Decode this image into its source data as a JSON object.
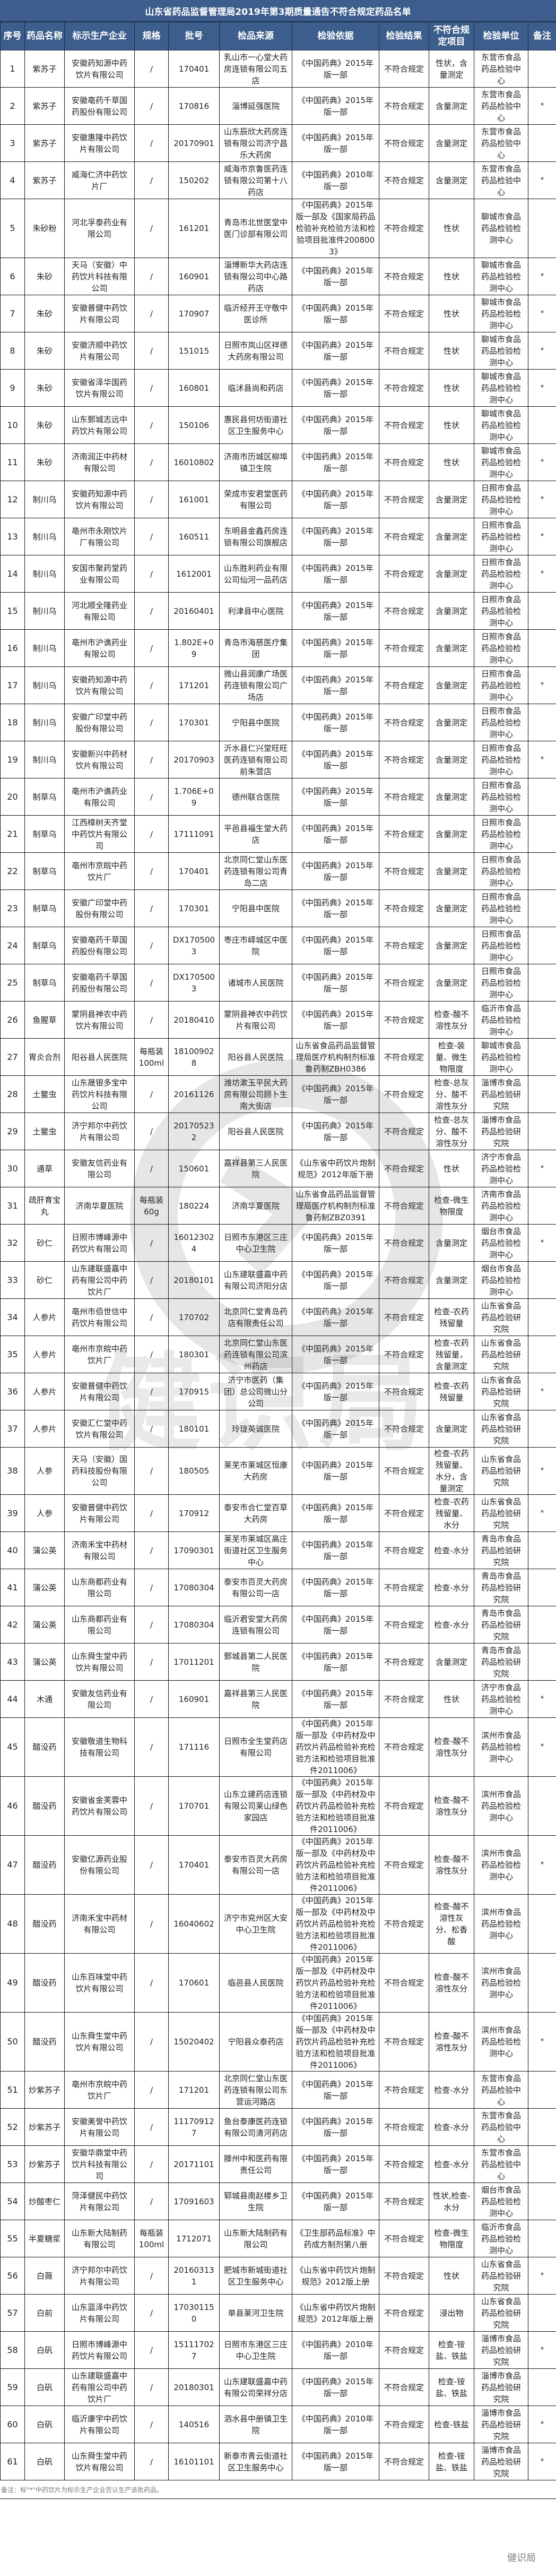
{
  "title": "山东省药品监督管理局2019年第3期质量通告不符合规定药品名单",
  "columns": [
    "序号",
    "药品名称",
    "标示生产企业",
    "规格",
    "批号",
    "检品来源",
    "检验依据",
    "检验结果",
    "不符合规定项目",
    "检验单位",
    "备注"
  ],
  "header_color": "#3d5e8c",
  "rows": [
    [
      "1",
      "紫苏子",
      "安徽药知源中药饮片有限公司",
      "/",
      "170401",
      "乳山市一心堂大药房连锁有限公司五店",
      "《中国药典》2015年版一部",
      "不符合规定",
      "性状，含量测定",
      "东营市食品药品检验中心",
      ""
    ],
    [
      "2",
      "紫苏子",
      "安徽亳药千草国药股份有限公司",
      "/",
      "170816",
      "淄博延强医院",
      "《中国药典》2015年版一部",
      "不符合规定",
      "含量测定",
      "东营市食品药品检验中心",
      "*"
    ],
    [
      "3",
      "紫苏子",
      "安徽惠隆中药饮片有限公司",
      "/",
      "20170901",
      "山东辰欣大药房连锁有限公司济宁昌乐大药房",
      "《中国药典》2015年版一部",
      "不符合规定",
      "含量测定",
      "东营市食品药品检验中心",
      ""
    ],
    [
      "4",
      "紫苏子",
      "威海仁济中药饮片厂",
      "/",
      "150202",
      "威海市京鲁医药连锁有限公司第十八药店",
      "《中国药典》2010年版一部",
      "不符合规定",
      "含量测定",
      "东营市食品药品检验中心",
      "*"
    ],
    [
      "5",
      "朱砂粉",
      "河北孚泰药业有限公司",
      "/",
      "161201",
      "青岛市北世医堂中医门诊部有限公司",
      "《中国药典》2015年版一部及《国家局药品检验补充检验方法和检验项目批准件2008003》",
      "不符合规定",
      "性状",
      "聊城市食品药品检验检测中心",
      ""
    ],
    [
      "6",
      "朱砂",
      "天马（安徽）中药饮片科技有限公司",
      "/",
      "160901",
      "淄博新华大药店连锁有限公司中心路药店",
      "《中国药典》2015年版一部",
      "不符合规定",
      "性状",
      "聊城市食品药品检验检测中心",
      "*"
    ],
    [
      "7",
      "朱砂",
      "安徽普健中药饮片有限公司",
      "/",
      "170907",
      "临沂经开王守敬中医诊所",
      "《中国药典》2015年版一部",
      "不符合规定",
      "性状",
      "聊城市食品药品检验检测中心",
      "*"
    ],
    [
      "8",
      "朱砂",
      "安徽济顺中药饮片有限公司",
      "/",
      "151015",
      "日照市岚山区祥德大药房有限公司",
      "《中国药典》2015年版一部",
      "不符合规定",
      "性状",
      "聊城市食品药品检验检测中心",
      "*"
    ],
    [
      "9",
      "朱砂",
      "安徽省泽华国药饮片有限公司",
      "/",
      "160801",
      "临沭县尚和药店",
      "《中国药典》2015年版一部",
      "不符合规定",
      "性状",
      "聊城市食品药品检验检测中心",
      "*"
    ],
    [
      "10",
      "朱砂",
      "山东鄄城志远中药饮片有限公司",
      "/",
      "150106",
      "惠民县何坊街道社区卫生服务中心",
      "《中国药典》2015年版一部",
      "不符合规定",
      "性状",
      "聊城市食品药品检验检测中心",
      ""
    ],
    [
      "11",
      "朱砂",
      "济南润正中药材有限公司",
      "/",
      "16010802",
      "济南市历城区柳埠镇卫生院",
      "《中国药典》2015年版一部",
      "不符合规定",
      "性状",
      "聊城市食品药品检验检测中心",
      "*"
    ],
    [
      "12",
      "制川乌",
      "安徽药知源中药饮片有限公司",
      "/",
      "161001",
      "荣成市安君堂医药有限公司",
      "《中国药典》2015年版一部",
      "不符合规定",
      "含量测定",
      "日照市食品药品检验检测中心",
      "*"
    ],
    [
      "13",
      "制川乌",
      "亳州市永刚饮片厂有限公司",
      "/",
      "160511",
      "东明县金鑫药房连锁有限公司旗舰店",
      "《中国药典》2015年版一部",
      "不符合规定",
      "含量测定",
      "日照市食品药品检验检测中心",
      "*"
    ],
    [
      "14",
      "制川乌",
      "安国市聚药堂药业有限公司",
      "/",
      "1612001",
      "山东胜利药业有限公司仙河一品药店",
      "《中国药典》2015年版一部",
      "不符合规定",
      "含量测定",
      "日照市食品药品检验检测中心",
      "*"
    ],
    [
      "15",
      "制川乌",
      "河北顺全隆药业有限公司",
      "/",
      "20160401",
      "利津县中心医院",
      "《中国药典》2015年版一部",
      "不符合规定",
      "含量测定",
      "日照市食品药品检验检测中心",
      ""
    ],
    [
      "16",
      "制川乌",
      "亳州市沪谯药业有限公司",
      "/",
      "1.802E+09",
      "青岛市海慈医疗集团",
      "《中国药典》2015年版一部",
      "不符合规定",
      "含量测定",
      "日照市食品药品检验检测中心",
      ""
    ],
    [
      "17",
      "制川乌",
      "安徽药知源中药饮片有限公司",
      "/",
      "171201",
      "微山县润康广场医药连锁有限公司广场店",
      "《中国药典》2015年版一部",
      "不符合规定",
      "含量测定",
      "日照市食品药品检验检测中心",
      "*"
    ],
    [
      "18",
      "制川乌",
      "安徽广印堂中药股份有限公司",
      "/",
      "170301",
      "宁阳县中医院",
      "《中国药典》2015年版一部",
      "不符合规定",
      "含量测定",
      "日照市食品药品检验检测中心",
      ""
    ],
    [
      "19",
      "制川乌",
      "安徽新兴中药材饮片有限公司",
      "/",
      "20170903",
      "沂水县仁兴堂旺旺医药连锁有限公司前朱营店",
      "《中国药典》2015年版一部",
      "不符合规定",
      "含量测定",
      "日照市食品药品检验检测中心",
      "*"
    ],
    [
      "20",
      "制草乌",
      "亳州市沪谯药业有限公司",
      "/",
      "1.706E+09",
      "德州联合医院",
      "《中国药典》2015年版一部",
      "不符合规定",
      "含量测定",
      "日照市食品药品检验检测中心",
      ""
    ],
    [
      "21",
      "制草乌",
      "江西樟树天齐堂中药饮片有限公司",
      "/",
      "17111091",
      "平邑县福生堂大药店",
      "《中国药典》2015年版一部",
      "不符合规定",
      "含量测定",
      "日照市食品药品检验检测中心",
      ""
    ],
    [
      "22",
      "制草乌",
      "亳州市京皖中药饮片厂",
      "/",
      "170401",
      "北京同仁堂山东医药连锁有限公司青岛二店",
      "《中国药典》2015年版一部",
      "不符合规定",
      "含量测定",
      "日照市食品药品检验检测中心",
      ""
    ],
    [
      "23",
      "制草乌",
      "安徽广印堂中药股份有限公司",
      "/",
      "170301",
      "宁阳县中医院",
      "《中国药典》2015年版一部",
      "不符合规定",
      "含量测定",
      "日照市食品药品检验检测中心",
      ""
    ],
    [
      "24",
      "制草乌",
      "安徽亳药千草国药股份有限公司",
      "/",
      "DX1705003",
      "枣庄市峄城区中医院",
      "《中国药典》2015年版一部",
      "不符合规定",
      "含量测定",
      "日照市食品药品检验检测中心",
      ""
    ],
    [
      "25",
      "制草乌",
      "安徽亳药千草国药股份有限公司",
      "/",
      "DX1705003",
      "诸城市人民医院",
      "《中国药典》2015年版一部",
      "不符合规定",
      "含量测定",
      "日照市食品药品检验检测中心",
      ""
    ],
    [
      "26",
      "鱼腥草",
      "蒙阴县神农中药饮片有限公司",
      "/",
      "20180410",
      "蒙阴县神农中药饮片有限公司",
      "《中国药典》2015年版一部",
      "不符合规定",
      "检查-酸不溶性灰分",
      "临沂市食品药品检验检测中心",
      ""
    ],
    [
      "27",
      "胃炎合剂",
      "阳谷县人民医院",
      "每瓶装100ml",
      "181009028",
      "阳谷县人民医院",
      "山东省食品药品监督管理局医疗机构制剂标准鲁药制ZBH0386",
      "不符合规定",
      "检查-装量、微生物限度",
      "聊城市食品药品检验检测中心",
      ""
    ],
    [
      "28",
      "土鳖虫",
      "山东晟银多宝中药饮片科技有限公司",
      "/",
      "20161126",
      "潍坊漱玉平民大药房有限公司顾卜生南大街店",
      "《中国药典》2015年版一部",
      "不符合规定",
      "检查-总灰分、酸不溶性灰分",
      "淄博市食品药品检验研究院",
      ""
    ],
    [
      "29",
      "土鳖虫",
      "济宁邦尔中药饮片有限公司",
      "/",
      "201705232",
      "阳谷县人民医院",
      "《中国药典》2015年版一部",
      "不符合规定",
      "检查-总灰分、酸不溶性灰分",
      "淄博市食品药品检验研究院",
      ""
    ],
    [
      "30",
      "通草",
      "安徽友信药业有限公司",
      "/",
      "150601",
      "嘉祥县第三人民医院",
      "《山东省中药饮片炮制规范》2012年版下册",
      "不符合规定",
      "性状",
      "济宁市食品药品检验检测中心",
      "*"
    ],
    [
      "31",
      "疏肝育宝丸",
      "济南华夏医院",
      "每瓶装60g",
      "180224",
      "济南华夏医院",
      "山东省食品药品监督管理局医疗机构制剂标准鲁药制ZBZ0391",
      "不符合规定",
      "检查-微生物限度",
      "济南市食品药品检验检测中心",
      ""
    ],
    [
      "32",
      "砂仁",
      "日照市博峰源中药饮片有限公司",
      "/",
      "160123024",
      "日照市东港区三庄中心卫生院",
      "《中国药典》2015年版一部",
      "不符合规定",
      "含量测定",
      "烟台市食品药品检验检测中心",
      "*"
    ],
    [
      "33",
      "砂仁",
      "山东建联盛嘉中药有限公司中药饮片厂",
      "/",
      "20180101",
      "山东建联盛嘉中药有限公司济阳分店",
      "《中国药典》2015年版一部",
      "不符合规定",
      "含量测定",
      "烟台市食品药品检验检测中心",
      ""
    ],
    [
      "34",
      "人参片",
      "亳州市佰世信中药饮片有限公司",
      "/",
      "170702",
      "北京同仁堂青岛药店有限责任公司",
      "《中国药典》2015年版一部",
      "不符合规定",
      "检查-农药残留量",
      "山东省食品药品检验研究院",
      ""
    ],
    [
      "35",
      "人参片",
      "亳州市京皖中药饮片厂",
      "/",
      "180301",
      "北京同仁堂山东医药连锁有限公司滨州药店",
      "《中国药典》2015年版一部",
      "不符合规定",
      "检查-农药残留量，含量测定",
      "山东省食品药品检验研究院",
      ""
    ],
    [
      "36",
      "人参片",
      "安徽普健中药饮片有限公司",
      "/",
      "170915",
      "济宁市医药（集团）总公司微山分公司",
      "《中国药典》2015年版一部",
      "不符合规定",
      "检查-农药残留量",
      "山东省食品药品检验研究院",
      "*"
    ],
    [
      "37",
      "人参片",
      "安徽汇仁堂中药饮片有限公司",
      "/",
      "180101",
      "玲珑英诚医院",
      "《中国药典》2015年版一部",
      "不符合规定",
      "含量测定",
      "山东省食品药品检验研究院",
      ""
    ],
    [
      "38",
      "人参",
      "天马（安徽）国药科技股份有限公司",
      "/",
      "180505",
      "莱芜市莱城区恒康大药房",
      "《中国药典》2015年版一部",
      "不符合规定",
      "检查-农药残留量、水分，含量测定",
      "山东省食品药品检验研究院",
      "*"
    ],
    [
      "39",
      "人参",
      "安徽普健中药饮片有限公司",
      "/",
      "170912",
      "泰安市合仁堂百草大药房",
      "《中国药典》2015年版一部",
      "不符合规定",
      "检查-农药残留量、水分",
      "山东省食品药品检验研究院",
      "*"
    ],
    [
      "40",
      "蒲公英",
      "济南禾宝中药材有限公司",
      "/",
      "17090301",
      "莱芜市莱城区高庄街道社区卫生服务中心",
      "《中国药典》2015年版一部",
      "不符合规定",
      "检查-水分",
      "青岛市食品药品检验研究院",
      ""
    ],
    [
      "41",
      "蒲公英",
      "山东商都药业有限公司",
      "/",
      "17080304",
      "泰安市百灵大药房有限公司一店",
      "《中国药典》2015年版一部",
      "不符合规定",
      "检查-水分",
      "青岛市食品药品检验研究院",
      ""
    ],
    [
      "42",
      "蒲公英",
      "山东商都药业有限公司",
      "/",
      "17080304",
      "临沂君安堂大药房连锁有限公司",
      "《中国药典》2015年版一部",
      "不符合规定",
      "检查-水分",
      "青岛市食品药品检验研究院",
      ""
    ],
    [
      "43",
      "蒲公英",
      "山东舜生堂中药饮片有限公司",
      "/",
      "17011201",
      "鄄城县第二人民医院",
      "《中国药典》2015年版一部",
      "不符合规定",
      "含量测定",
      "青岛市食品药品检验研究院",
      ""
    ],
    [
      "44",
      "木通",
      "安徽友信药业有限公司",
      "/",
      "160901",
      "嘉祥县第三人民医院",
      "《中国药典》2015年版一部",
      "不符合规定",
      "性状",
      "济宁市食品药品检验检测中心",
      "*"
    ],
    [
      "45",
      "醋没药",
      "安徽敬道生物科技有限公司",
      "/",
      "171116",
      "日照市全生堂药店有限公司",
      "《中国药典》2015年版一部及《中药材及中药饮片药品检验补充检验方法和检验项目批准件2011006》",
      "不符合规定",
      "检查-酸不溶性灰分",
      "滨州市食品药品检验检测中心",
      "*"
    ],
    [
      "46",
      "醋没药",
      "安徽省金芙蓉中药饮片有限公司",
      "/",
      "170701",
      "山东立建药店连锁有限公司莱山绿色家园店",
      "《中国药典》2015年版一部及《中药材及中药饮片药品检验补充检验方法和检验项目批准件2011006》",
      "不符合规定",
      "检查-酸不溶性灰分",
      "滨州市食品药品检验检测中心",
      ""
    ],
    [
      "47",
      "醋没药",
      "安徽亿源药业股份有限公司",
      "/",
      "170401",
      "泰安市百灵大药房有限公司一店",
      "《中国药典》2015年版一部及《中药材及中药饮片药品检验补充检验方法和检验项目批准件2011006》",
      "不符合规定",
      "检查-酸不溶性灰分",
      "滨州市食品药品检验检测中心",
      "*"
    ],
    [
      "48",
      "醋没药",
      "济南禾宝中药材有限公司",
      "/",
      "16040602",
      "济宁市兖州区大安中心卫生院",
      "《中国药典》2015年版一部及《中药材及中药饮片药品检验补充检验方法和检验项目批准件2011006》",
      "不符合规定",
      "检查-酸不溶性灰分、松香酸",
      "滨州市食品药品检验检测中心",
      ""
    ],
    [
      "49",
      "醋没药",
      "山东百味堂中药饮片有限公司",
      "/",
      "170601",
      "临邑县人民医院",
      "《中国药典》2015年版一部及《中药材及中药饮片药品检验补充检验方法和检验项目批准件2011006》",
      "不符合规定",
      "检查-酸不溶性灰分",
      "滨州市食品药品检验检测中心",
      ""
    ],
    [
      "50",
      "醋没药",
      "山东舜生堂中药饮片有限公司",
      "/",
      "15020402",
      "宁阳县众泰药店",
      "《中国药典》2015年版一部及《中药材及中药饮片药品检验补充检验方法和检验项目批准件2011006》",
      "不符合规定",
      "检查-酸不溶性灰分",
      "滨州市食品药品检验检测中心",
      "*"
    ],
    [
      "51",
      "炒紫苏子",
      "亳州市京皖中药饮片厂",
      "/",
      "171201",
      "北京同仁堂山东医药连锁有限公司东营运河路店",
      "《中国药典》2015年版一部",
      "不符合规定",
      "检查-水分",
      "东营市食品药品检验中心",
      ""
    ],
    [
      "52",
      "炒紫苏子",
      "安徽美誉中药饮片有限公司",
      "/",
      "111709127",
      "鱼台泰康医药连锁有限公司清河药店",
      "《中国药典》2015年版一部",
      "不符合规定",
      "检查-水分",
      "东营市食品药品检验中心",
      ""
    ],
    [
      "53",
      "炒紫苏子",
      "安徽华鼎堂中药饮片科技有限公司",
      "/",
      "20171101",
      "滕州中和医药有限责任公司",
      "《中国药典》2015年版一部",
      "不符合规定",
      "检查-水分",
      "东营市食品药品检验中心",
      ""
    ],
    [
      "54",
      "炒酸枣仁",
      "菏泽健民中药饮片有限公司",
      "/",
      "17091603",
      "郓城县南赵楼乡卫生院",
      "《中国药典》2015年版一部",
      "不符合规定",
      "性状,检查-水分",
      "烟台市食品药品检验检测中心",
      ""
    ],
    [
      "55",
      "半夏糖浆",
      "山东新大陆制药有限公司",
      "每瓶装100ml",
      "1712071",
      "山东新大陆制药有限公司",
      "《卫生部药品标准》中药成方制剂第八册",
      "不符合规定",
      "检查-微生物限度",
      "临沂市食品药品检验检测中心",
      ""
    ],
    [
      "56",
      "白薇",
      "济宁邦尔中药饮片有限公司",
      "/",
      "201603131",
      "肥城市新城街道社区卫生服务中心",
      "《山东省中药饮片炮制规范》2012版上册",
      "不符合规定",
      "性状",
      "山东省食品药品检验研究院",
      "*"
    ],
    [
      "57",
      "白前",
      "山东蓝泽中药饮片有限公司",
      "/",
      "170301150",
      "单县莱河卫生院",
      "《山东省中药饮片炮制规范》2012年版上册",
      "不符合规定",
      "浸出物",
      "山东省食品药品检验研究院",
      ""
    ],
    [
      "58",
      "白矾",
      "日照市博峰源中药饮片有限公司",
      "/",
      "151117027",
      "日照市东港区三庄中心卫生院",
      "《中国药典》2010年版一部",
      "不符合规定",
      "检查-铵盐、铁盐",
      "淄博市食品药品检验研究院",
      "*"
    ],
    [
      "59",
      "白矾",
      "山东建联盛嘉中药有限公司中药饮片厂",
      "/",
      "20180301",
      "山东建联盛嘉中药有限公司荣祥分店",
      "《中国药典》2015年版一部",
      "不符合规定",
      "检查-铵盐、铁盐",
      "淄博市食品药品检验研究院",
      ""
    ],
    [
      "60",
      "白矾",
      "临沂康宇中药饮片有限公司",
      "/",
      "140516",
      "泗水县中册镇卫生院",
      "《中国药典》2010年版一部",
      "不符合规定",
      "检查-铁盐",
      "淄博市食品药品检验研究院",
      "*"
    ],
    [
      "61",
      "白矾",
      "山东舜生堂中药饮片有限公司",
      "/",
      "16101101",
      "新泰市青云街道社区卫生服务中心",
      "《中国药典》2015年版一部",
      "不符合规定",
      "检查-铵盐、铁盐",
      "淄博市食品药品检验研究院",
      "*"
    ]
  ],
  "footnote": "备注：标\"*\"中药饮片为标示生产企业否认生产该批药品。",
  "watermark": {
    "center_text": "健识局",
    "corner_text": "健识局"
  }
}
